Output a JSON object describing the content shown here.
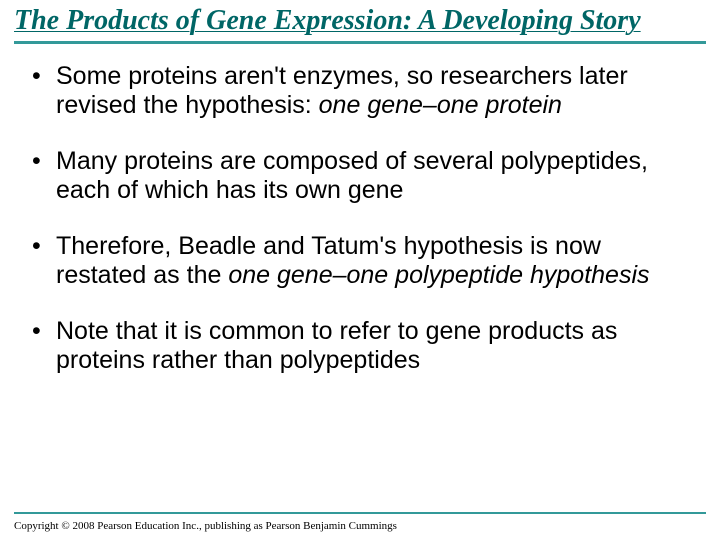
{
  "colors": {
    "title_text": "#006666",
    "rule": "#339999",
    "body_text": "#000000",
    "background": "#ffffff"
  },
  "typography": {
    "title_font": "Times New Roman",
    "title_fontsize": 28,
    "title_style": "italic bold underline",
    "body_font": "Arial",
    "body_fontsize": 25,
    "footer_fontsize": 11
  },
  "title": "The Products of Gene Expression: A Developing Story",
  "bullets": [
    {
      "pre": "Some proteins aren't enzymes, so researchers later revised the hypothesis: ",
      "ital": "one gene–one protein",
      "post": ""
    },
    {
      "pre": "Many proteins are composed of several polypeptides, each of which has its own gene",
      "ital": "",
      "post": ""
    },
    {
      "pre": "Therefore, Beadle and Tatum's hypothesis is now restated as the ",
      "ital": "one gene–one polypeptide hypothesis",
      "post": ""
    },
    {
      "pre": "Note that it is common to refer to gene products as proteins rather than polypeptides",
      "ital": "",
      "post": ""
    }
  ],
  "copyright": "Copyright © 2008 Pearson Education Inc., publishing as Pearson Benjamin Cummings"
}
